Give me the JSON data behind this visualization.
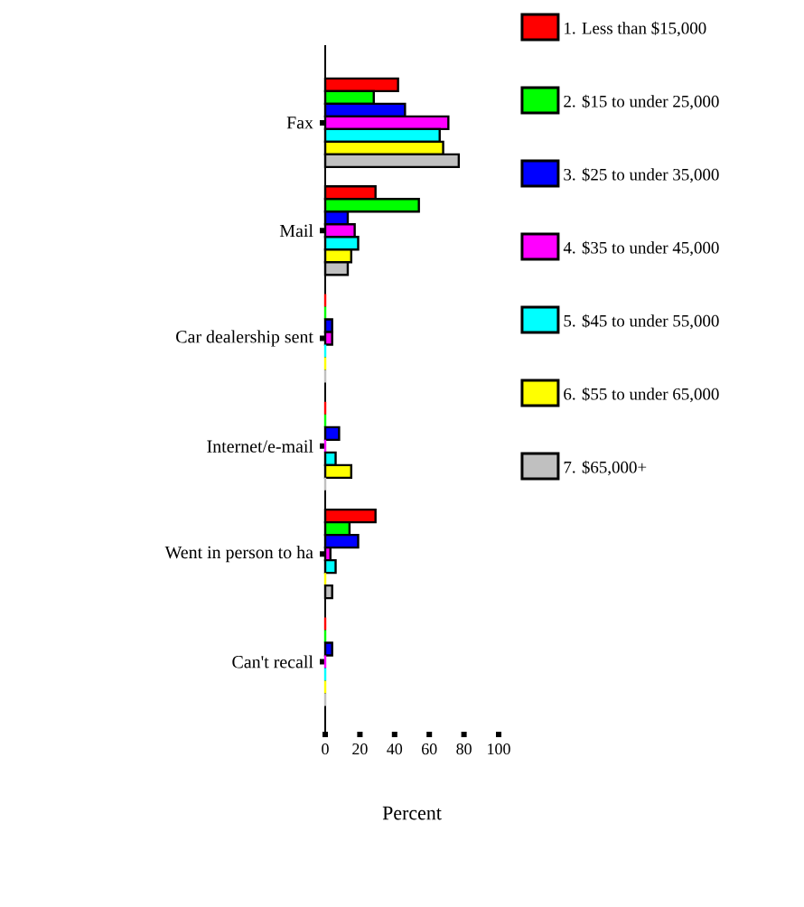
{
  "chart_data": {
    "type": "bar",
    "orientation": "horizontal",
    "xlabel": "Percent",
    "categories": [
      "Fax",
      "Mail",
      "Car dealership sent",
      "Internet/e-mail",
      "Went in person to ha",
      "Can't recall"
    ],
    "series": [
      {
        "name": "1. Less than $15,000",
        "color": "#ff0000",
        "values": [
          42,
          29,
          0,
          0,
          29,
          0
        ]
      },
      {
        "name": "2. $15 to under 25,000",
        "color": "#00ff00",
        "values": [
          28,
          54,
          0,
          0,
          14,
          0
        ]
      },
      {
        "name": "3. $25 to under 35,000",
        "color": "#0000ff",
        "values": [
          46,
          13,
          4,
          8,
          19,
          4
        ]
      },
      {
        "name": "4. $35 to under 45,000",
        "color": "#ff00ff",
        "values": [
          71,
          17,
          4,
          0,
          3,
          0
        ]
      },
      {
        "name": "5. $45 to under 55,000",
        "color": "#00ffff",
        "values": [
          66,
          19,
          0,
          6,
          6,
          0
        ]
      },
      {
        "name": "6. $55 to under 65,000",
        "color": "#ffff00",
        "values": [
          68,
          15,
          0,
          15,
          0,
          0
        ]
      },
      {
        "name": "7. $65,000+",
        "color": "#c0c0c0",
        "values": [
          77,
          13,
          0,
          0,
          4,
          0
        ]
      }
    ],
    "xlim": [
      0,
      100
    ],
    "xticks": [
      0,
      20,
      40,
      60,
      80,
      100
    ],
    "legend": "right"
  }
}
